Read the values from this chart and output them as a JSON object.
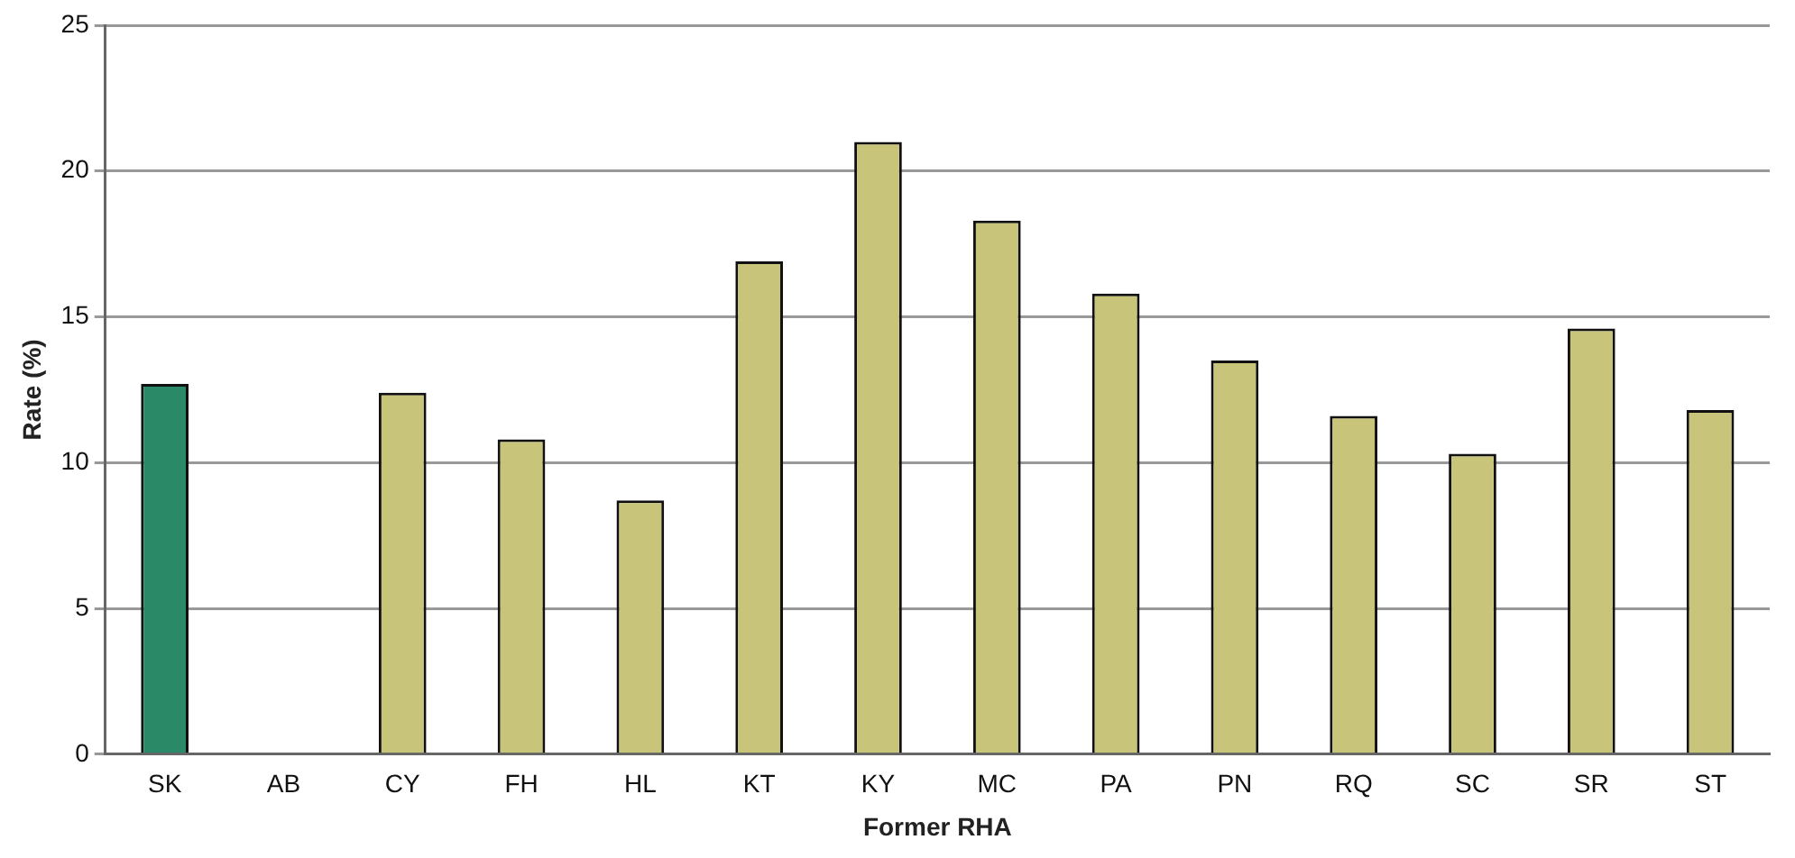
{
  "chart_data": {
    "type": "bar",
    "xlabel": "Former RHA",
    "ylabel": "Rate (%)",
    "categories": [
      "SK",
      "AB",
      "CY",
      "FH",
      "HL",
      "KT",
      "KY",
      "MC",
      "PA",
      "PN",
      "RQ",
      "SC",
      "SR",
      "ST"
    ],
    "values": [
      12.7,
      null,
      12.4,
      10.8,
      8.7,
      16.9,
      21.0,
      18.3,
      15.8,
      13.5,
      11.6,
      10.3,
      14.6,
      11.8
    ],
    "colors": [
      "#2a8a68",
      "#c8c47a",
      "#c8c47a",
      "#c8c47a",
      "#c8c47a",
      "#c8c47a",
      "#c8c47a",
      "#c8c47a",
      "#c8c47a",
      "#c8c47a",
      "#c8c47a",
      "#c8c47a",
      "#c8c47a",
      "#c8c47a"
    ],
    "ylim": [
      0,
      25
    ],
    "yticks": [
      0,
      5,
      10,
      15,
      20,
      25
    ],
    "grid": "y",
    "legend": false
  }
}
